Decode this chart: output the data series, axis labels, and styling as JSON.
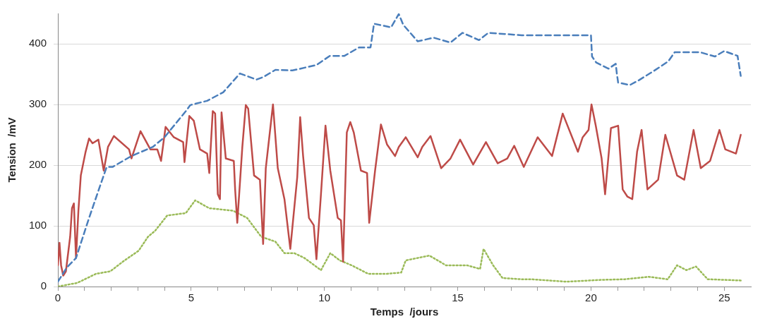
{
  "chart_data": {
    "type": "line",
    "xlabel": "Temps  /jours",
    "ylabel": "Tension  /mV",
    "xlim": [
      0,
      26
    ],
    "ylim": [
      0,
      450
    ],
    "xticks": [
      0,
      {
        "value": 1,
        "label": null
      },
      {
        "value": 2,
        "label": null
      },
      {
        "value": 3,
        "label": null
      },
      {
        "value": 4,
        "label": null
      },
      5,
      {
        "value": 6,
        "label": null
      },
      {
        "value": 7,
        "label": null
      },
      {
        "value": 8,
        "label": null
      },
      {
        "value": 9,
        "label": null
      },
      10,
      {
        "value": 11,
        "label": null
      },
      {
        "value": 12,
        "label": null
      },
      {
        "value": 13,
        "label": null
      },
      {
        "value": 14,
        "label": null
      },
      15,
      {
        "value": 16,
        "label": null
      },
      {
        "value": 17,
        "label": null
      },
      {
        "value": 18,
        "label": null
      },
      {
        "value": 19,
        "label": null
      },
      20,
      {
        "value": 21,
        "label": null
      },
      {
        "value": 22,
        "label": null
      },
      {
        "value": 23,
        "label": null
      },
      {
        "value": 24,
        "label": null
      },
      25
    ],
    "yticks": [
      0,
      100,
      200,
      300,
      400
    ],
    "grid": "y",
    "legend": false,
    "marker": "none",
    "series": [
      {
        "color": "#4a7ebb",
        "line_style": "dashed",
        "x": [
          0,
          0.33,
          0.68,
          1.17,
          1.6,
          1.83,
          2.05,
          2.76,
          3.56,
          4.0,
          4.8,
          4.97,
          5.6,
          6.2,
          6.83,
          7.45,
          7.7,
          8.16,
          8.8,
          9.7,
          10.2,
          10.75,
          11.3,
          11.73,
          11.86,
          12.5,
          12.79,
          12.96,
          13.5,
          14.1,
          14.73,
          15.18,
          15.8,
          16.15,
          17.4,
          20.0,
          20.04,
          20.2,
          20.66,
          20.93,
          20.97,
          21.02,
          21.46,
          21.8,
          22.35,
          22.9,
          23.14,
          24.1,
          24.65,
          25.0,
          25.5,
          25.62
        ],
        "values": [
          8,
          31,
          47,
          113,
          168,
          197,
          197,
          215,
          230,
          246,
          289,
          299,
          306,
          320,
          351,
          341,
          345,
          357,
          356,
          365,
          380,
          380,
          394,
          394,
          433,
          427,
          449,
          431,
          404,
          410,
          402,
          418,
          406,
          418,
          414,
          414,
          379,
          369,
          359,
          367,
          351,
          336,
          332,
          340,
          355,
          371,
          386,
          386,
          379,
          388,
          380,
          347
        ]
      },
      {
        "color": "#be4b48",
        "line_style": "solid",
        "x": [
          0,
          0.06,
          0.12,
          0.2,
          0.3,
          0.46,
          0.53,
          0.6,
          0.68,
          0.77,
          0.86,
          1.04,
          1.17,
          1.3,
          1.52,
          1.72,
          1.88,
          2.1,
          2.67,
          2.76,
          3.1,
          3.47,
          3.73,
          3.87,
          4.04,
          4.35,
          4.7,
          4.75,
          4.93,
          5.1,
          5.33,
          5.6,
          5.68,
          5.81,
          5.9,
          6.0,
          6.08,
          6.14,
          6.3,
          6.6,
          6.65,
          6.73,
          6.92,
          7.05,
          7.14,
          7.36,
          7.58,
          7.7,
          7.8,
          8.07,
          8.25,
          8.5,
          8.72,
          8.98,
          9.09,
          9.2,
          9.42,
          9.6,
          9.7,
          9.87,
          10.04,
          10.22,
          10.5,
          10.62,
          10.7,
          10.84,
          10.97,
          11.1,
          11.37,
          11.6,
          11.68,
          11.9,
          12.12,
          12.35,
          12.65,
          12.79,
          13.05,
          13.5,
          13.67,
          13.98,
          14.38,
          14.73,
          15.09,
          15.58,
          16.06,
          16.5,
          16.86,
          17.12,
          17.48,
          18.0,
          18.54,
          18.94,
          19.51,
          19.69,
          19.91,
          20.02,
          20.18,
          20.4,
          20.53,
          20.75,
          21.02,
          21.19,
          21.37,
          21.55,
          21.73,
          21.9,
          22.12,
          22.52,
          22.79,
          23.23,
          23.5,
          23.85,
          24.12,
          24.47,
          24.82,
          25.04,
          25.44,
          25.62
        ],
        "values": [
          35,
          72,
          35,
          18,
          25,
          82,
          129,
          137,
          47,
          125,
          183,
          222,
          244,
          236,
          242,
          191,
          230,
          248,
          226,
          211,
          256,
          226,
          226,
          207,
          263,
          246,
          238,
          205,
          281,
          273,
          226,
          219,
          187,
          289,
          285,
          152,
          144,
          287,
          211,
          207,
          160,
          105,
          230,
          299,
          293,
          183,
          176,
          70,
          195,
          300,
          195,
          144,
          62,
          180,
          279,
          215,
          113,
          101,
          45,
          152,
          265,
          191,
          113,
          109,
          41,
          254,
          271,
          254,
          191,
          187,
          105,
          191,
          267,
          234,
          215,
          230,
          246,
          213,
          230,
          248,
          195,
          211,
          242,
          201,
          238,
          203,
          211,
          232,
          197,
          246,
          215,
          285,
          222,
          246,
          258,
          300,
          265,
          211,
          152,
          261,
          265,
          160,
          148,
          144,
          222,
          258,
          160,
          176,
          250,
          183,
          176,
          258,
          195,
          207,
          258,
          226,
          219,
          250
        ]
      },
      {
        "color": "#9bbb59",
        "line_style": "dotted",
        "x": [
          0,
          0.73,
          1.43,
          1.96,
          2.5,
          3.03,
          3.38,
          3.65,
          4.1,
          4.8,
          5.15,
          5.68,
          6.57,
          7.1,
          7.63,
          8.16,
          8.5,
          8.87,
          9.25,
          9.87,
          10.22,
          10.58,
          11.02,
          11.64,
          12.35,
          12.88,
          13.05,
          13.94,
          14.56,
          15.35,
          15.84,
          15.97,
          16.33,
          16.68,
          17.4,
          17.74,
          19.07,
          20.4,
          21.28,
          22.17,
          22.88,
          23.23,
          23.58,
          23.94,
          24.38,
          25.62
        ],
        "values": [
          0,
          6,
          21,
          25,
          43,
          59,
          82,
          92,
          117,
          121,
          142,
          129,
          125,
          113,
          82,
          74,
          55,
          55,
          47,
          27,
          55,
          43,
          35,
          21,
          21,
          23,
          43,
          51,
          35,
          35,
          29,
          62,
          35,
          14,
          12,
          12,
          8,
          11,
          12,
          16,
          12,
          35,
          27,
          33,
          12,
          10
        ]
      }
    ]
  }
}
